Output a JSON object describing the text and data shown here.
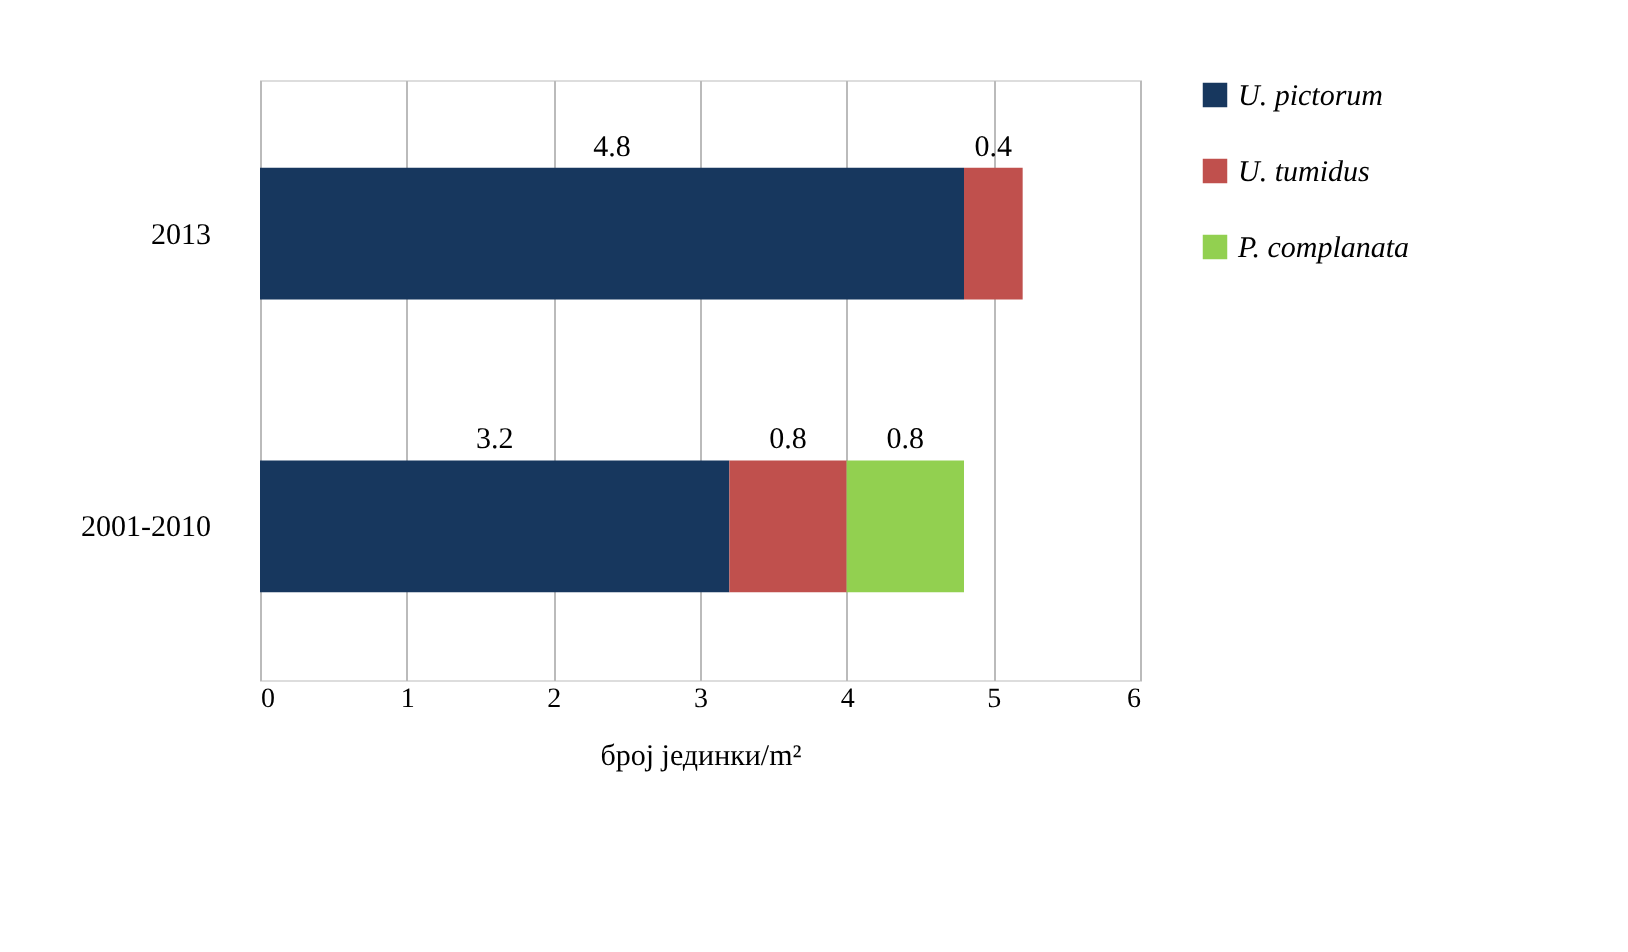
{
  "chart_data": {
    "type": "bar",
    "orientation": "horizontal",
    "stacked": true,
    "categories": [
      "2013",
      "2001-2010"
    ],
    "series": [
      {
        "name": "U. pictorum",
        "color": "#17375e",
        "values": [
          4.8,
          3.2
        ]
      },
      {
        "name": "U. tumidus",
        "color": "#c0504d",
        "values": [
          0.4,
          0.8
        ]
      },
      {
        "name": "P. complanata",
        "color": "#92d050",
        "values": [
          null,
          0.8
        ]
      }
    ],
    "xlabel": "број јединки/m²",
    "xlim": [
      0,
      6
    ],
    "xticks": [
      0,
      1,
      2,
      3,
      4,
      5,
      6
    ],
    "grid": "x",
    "legend": "right",
    "data_labels": true
  }
}
